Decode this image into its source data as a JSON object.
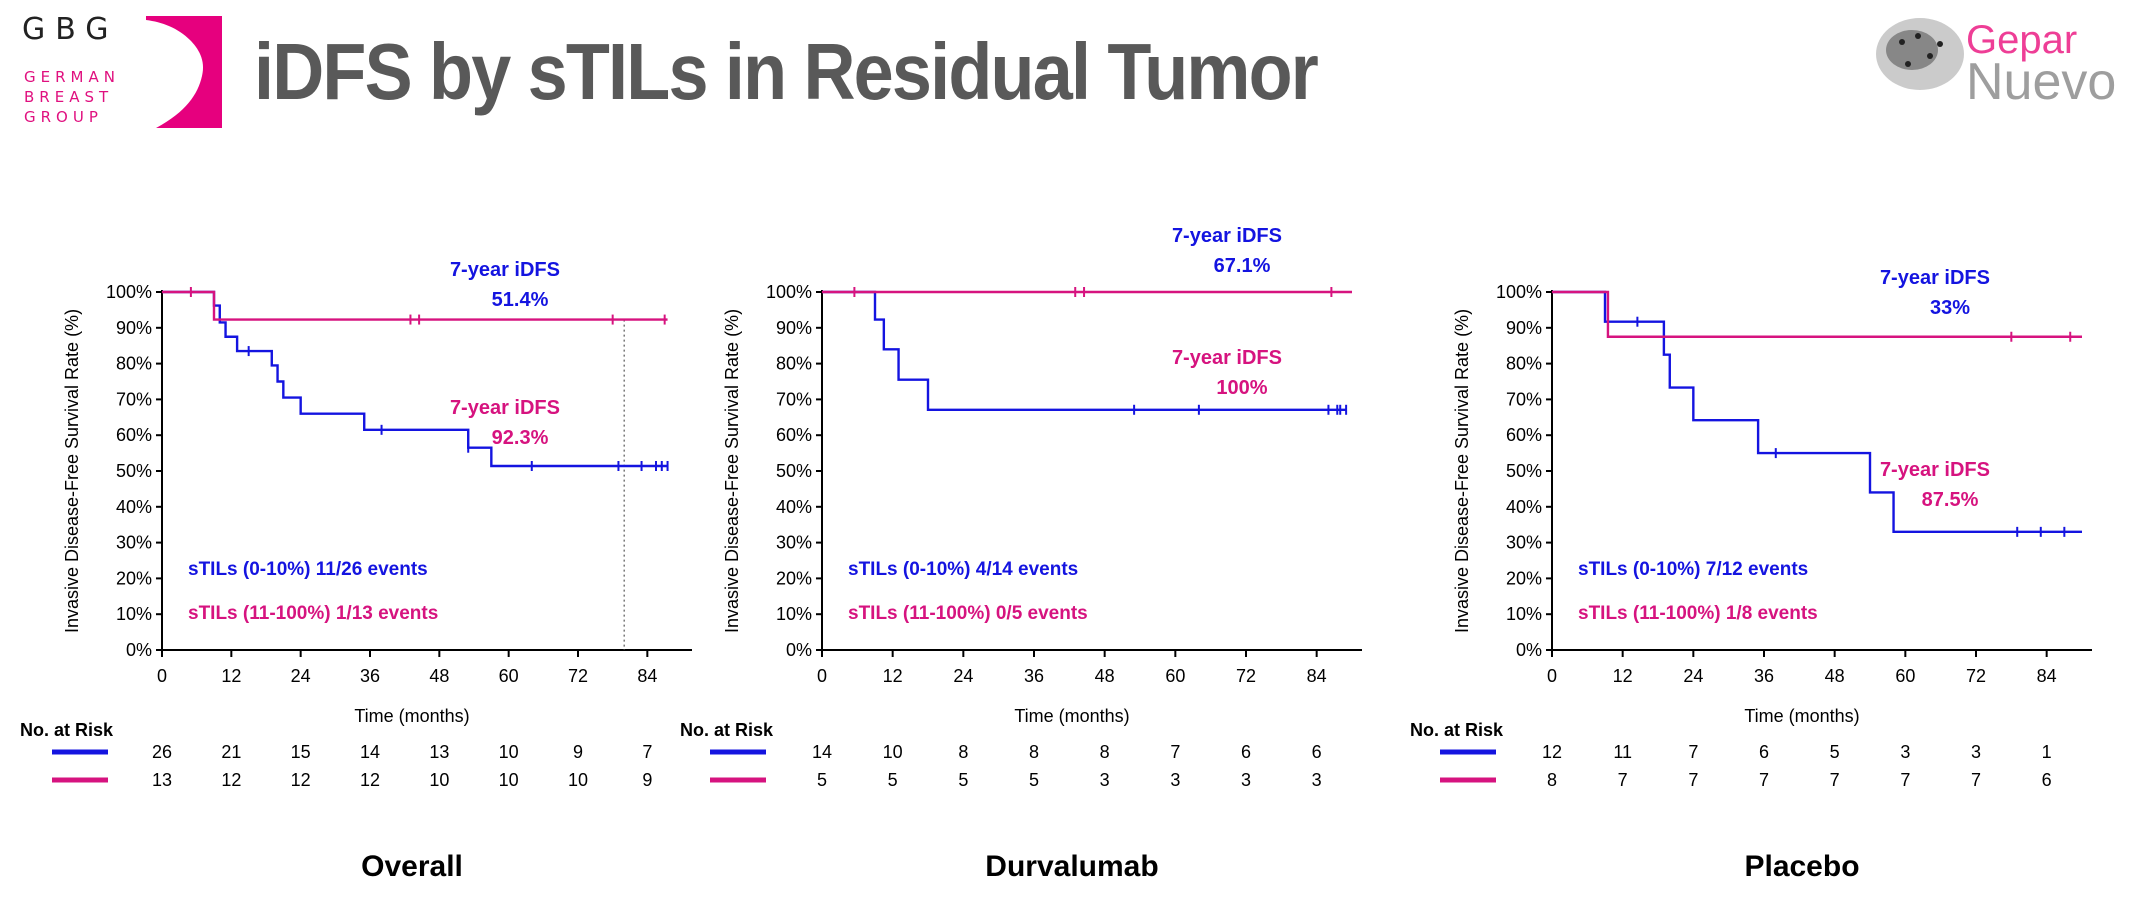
{
  "header": {
    "title": "iDFS by sTILs in Residual Tumor",
    "gbg_logo": {
      "letters": "GBG",
      "line1": "GERMAN",
      "line2": "BREAST",
      "line3": "GROUP"
    },
    "gepar_logo": {
      "top": "Gepar",
      "bottom": "Nuevo"
    }
  },
  "colors": {
    "low_tils": "#1414e0",
    "high_tils": "#d6137f",
    "title": "#595959",
    "brand_pink": "#e0107f"
  },
  "chart_data": [
    {
      "type": "line",
      "subtype": "kaplan-meier",
      "title": "Overall",
      "xlabel": "Time (months)",
      "ylabel": "Invasive Disease-Free Survival Rate (%)",
      "xlim": [
        0,
        90
      ],
      "ylim": [
        0,
        100
      ],
      "x_ticks": [
        "0",
        "12",
        "24",
        "36",
        "48",
        "60",
        "72",
        "84"
      ],
      "y_ticks": [
        "0%",
        "10%",
        "20%",
        "30%",
        "40%",
        "50%",
        "60%",
        "70%",
        "80%",
        "90%",
        "100%"
      ],
      "reference_line_x": 80,
      "series": [
        {
          "name": "sTILs (0-10%)",
          "legend": "sTILs (0-10%) 11/26 events",
          "color": "#1414e0",
          "steps": [
            [
              0,
              100
            ],
            [
              9,
              96.2
            ],
            [
              10,
              91.5
            ],
            [
              11,
              87.5
            ],
            [
              13,
              83.5
            ],
            [
              19,
              79.5
            ],
            [
              20,
              75
            ],
            [
              21,
              70.5
            ],
            [
              24,
              66
            ],
            [
              35,
              61.5
            ],
            [
              53,
              56.5
            ],
            [
              57,
              51.4
            ],
            [
              87.5,
              51.4
            ]
          ],
          "censor_times": [
            15,
            38,
            53,
            64,
            79,
            83,
            85.5,
            86.5,
            87.5
          ],
          "annotation": {
            "label": "7-year iDFS",
            "value": "51.4%"
          }
        },
        {
          "name": "sTILs (11-100%)",
          "legend": "sTILs (11-100%) 1/13 events",
          "color": "#d6137f",
          "steps": [
            [
              0,
              100
            ],
            [
              9,
              92.3
            ],
            [
              87.5,
              92.3
            ]
          ],
          "censor_times": [
            5,
            43,
            44.5,
            78,
            87
          ],
          "annotation": {
            "label": "7-year iDFS",
            "value": "92.3%"
          }
        }
      ],
      "risk_table": {
        "header": "No. at Risk",
        "rows": [
          {
            "values": [
              "26",
              "21",
              "15",
              "14",
              "13",
              "10",
              "9",
              "7"
            ]
          },
          {
            "values": [
              "13",
              "12",
              "12",
              "12",
              "10",
              "10",
              "10",
              "9"
            ]
          }
        ]
      }
    },
    {
      "type": "line",
      "subtype": "kaplan-meier",
      "title": "Durvalumab",
      "xlabel": "Time (months)",
      "ylabel": "Invasive Disease-Free Survival Rate (%)",
      "xlim": [
        0,
        90
      ],
      "ylim": [
        0,
        100
      ],
      "x_ticks": [
        "0",
        "12",
        "24",
        "36",
        "48",
        "60",
        "72",
        "84"
      ],
      "y_ticks": [
        "0%",
        "10%",
        "20%",
        "30%",
        "40%",
        "50%",
        "60%",
        "70%",
        "80%",
        "90%",
        "100%"
      ],
      "series": [
        {
          "name": "sTILs (0-10%)",
          "legend": "sTILs (0-10%) 4/14 events",
          "color": "#1414e0",
          "steps": [
            [
              0,
              100
            ],
            [
              9,
              92.3
            ],
            [
              10.5,
              84
            ],
            [
              13,
              75.5
            ],
            [
              18,
              67.1
            ],
            [
              89,
              67.1
            ]
          ],
          "censor_times": [
            53,
            64,
            86,
            87.5,
            88,
            89
          ],
          "annotation": {
            "label": "7-year iDFS",
            "value": "67.1%"
          }
        },
        {
          "name": "sTILs (11-100%)",
          "legend": "sTILs (11-100%) 0/5 events",
          "color": "#d6137f",
          "steps": [
            [
              0,
              100
            ],
            [
              90,
              100
            ]
          ],
          "censor_times": [
            5.5,
            43,
            44.5,
            86.5
          ],
          "annotation": {
            "label": "7-year iDFS",
            "value": "100%"
          }
        }
      ],
      "risk_table": {
        "header": "No. at Risk",
        "rows": [
          {
            "values": [
              "14",
              "10",
              "8",
              "8",
              "8",
              "7",
              "6",
              "6"
            ]
          },
          {
            "values": [
              "5",
              "5",
              "5",
              "5",
              "3",
              "3",
              "3",
              "3"
            ]
          }
        ]
      }
    },
    {
      "type": "line",
      "subtype": "kaplan-meier",
      "title": "Placebo",
      "xlabel": "Time (months)",
      "ylabel": "Invasive Disease-Free Survival Rate (%)",
      "xlim": [
        0,
        90
      ],
      "ylim": [
        0,
        100
      ],
      "x_ticks": [
        "0",
        "12",
        "24",
        "36",
        "48",
        "60",
        "72",
        "84"
      ],
      "y_ticks": [
        "0%",
        "10%",
        "20%",
        "30%",
        "40%",
        "50%",
        "60%",
        "70%",
        "80%",
        "90%",
        "100%"
      ],
      "series": [
        {
          "name": "sTILs (0-10%)",
          "legend": "sTILs (0-10%) 7/12 events",
          "color": "#1414e0",
          "steps": [
            [
              0,
              100
            ],
            [
              9,
              91.7
            ],
            [
              19,
              82.5
            ],
            [
              20,
              73.3
            ],
            [
              24,
              64.2
            ],
            [
              35,
              55
            ],
            [
              54,
              44
            ],
            [
              58,
              33
            ],
            [
              90,
              33
            ]
          ],
          "censor_times": [
            14.5,
            38,
            79,
            83,
            87
          ],
          "annotation": {
            "label": "7-year iDFS",
            "value": "33%"
          }
        },
        {
          "name": "sTILs (11-100%)",
          "legend": "sTILs (11-100%) 1/8 events",
          "color": "#d6137f",
          "steps": [
            [
              0,
              100
            ],
            [
              9.5,
              87.5
            ],
            [
              90,
              87.5
            ]
          ],
          "censor_times": [
            78,
            88
          ],
          "annotation": {
            "label": "7-year iDFS",
            "value": "87.5%"
          }
        }
      ],
      "risk_table": {
        "header": "No. at Risk",
        "rows": [
          {
            "values": [
              "12",
              "11",
              "7",
              "6",
              "5",
              "3",
              "3",
              "1"
            ]
          },
          {
            "values": [
              "8",
              "7",
              "7",
              "7",
              "7",
              "7",
              "7",
              "6"
            ]
          }
        ]
      }
    }
  ]
}
